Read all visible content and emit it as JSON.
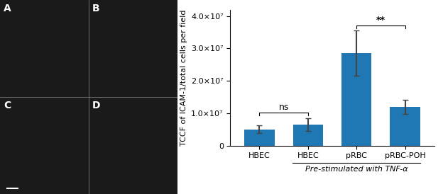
{
  "chart_data": {
    "type": "bar",
    "categories": [
      "HBEC",
      "HBEC",
      "pRBC",
      "pRBC-POH"
    ],
    "values": [
      5000000.0,
      6500000.0,
      28500000.0,
      12000000.0
    ],
    "errors": [
      1200000.0,
      2000000.0,
      7000000.0,
      2200000.0
    ],
    "ylabel": "TCCF of ICAM-1/total cells per field",
    "ylim": [
      0,
      42000000.0
    ],
    "yticks": [
      0,
      {
        "value": 10000000.0,
        "label": "1.0×10⁷"
      },
      {
        "value": 20000000.0,
        "label": "2.0×10⁷"
      },
      {
        "value": 30000000.0,
        "label": "3.0×10⁷"
      },
      {
        "value": 40000000.0,
        "label": "4.0×10⁷"
      }
    ],
    "annotations": [
      {
        "text": "ns",
        "categories": [
          0,
          1
        ]
      },
      {
        "text": "**",
        "categories": [
          2,
          3
        ]
      },
      {
        "text": "Pre-stimulated with TNF-α",
        "categories": [
          1,
          3
        ]
      },
      {
        "text": "A"
      },
      {
        "text": "B"
      },
      {
        "text": "C"
      },
      {
        "text": "D"
      }
    ]
  }
}
